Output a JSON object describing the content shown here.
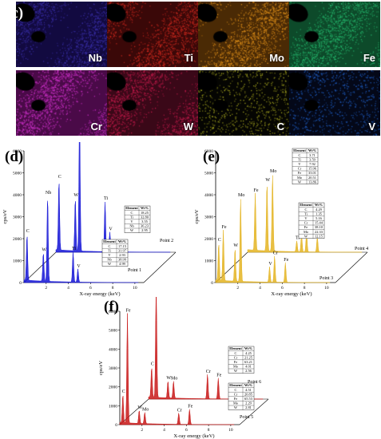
{
  "panel_c": {
    "label": "(c)",
    "maps": [
      {
        "element": "Nb",
        "color": "#3a2fa8",
        "bg": "#120a40"
      },
      {
        "element": "Ti",
        "color": "#c8281e",
        "bg": "#3a0808"
      },
      {
        "element": "Mo",
        "color": "#e0901a",
        "bg": "#4a2a05"
      },
      {
        "element": "Fe",
        "color": "#24b36a",
        "bg": "#0d4a2a"
      },
      {
        "element": "Cr",
        "color": "#cc30c8",
        "bg": "#4a0a48"
      },
      {
        "element": "W",
        "color": "#c01a4a",
        "bg": "#3a0818"
      },
      {
        "element": "C",
        "color": "#a8a820",
        "bg": "#050502"
      },
      {
        "element": "V",
        "color": "#2060c8",
        "bg": "#040818"
      }
    ]
  },
  "chart_data": [
    {
      "panel": "(d)",
      "type": "line",
      "color": "#1414d6",
      "xlabel": "X-ray energy (keV)",
      "ylabel": "cps/eV",
      "yticks": [
        "0",
        "1000",
        "2000",
        "3000",
        "4000",
        "5000",
        "6000"
      ],
      "xticks": [
        "2",
        "4",
        "6",
        "8",
        "10"
      ],
      "series": [
        {
          "name": "Point 1",
          "peaks": [
            {
              "label": "C",
              "x": 0.28,
              "y": 2100
            },
            {
              "label": "W",
              "x": 1.78,
              "y": 1300
            },
            {
              "label": "Nb",
              "x": 2.17,
              "y": 3900
            },
            {
              "label": "Ti",
              "x": 4.51,
              "y": 1400
            },
            {
              "label": "V",
              "x": 4.95,
              "y": 600
            }
          ],
          "table": [
            [
              "Element",
              "Wt%"
            ],
            [
              "C",
              "17.15"
            ],
            [
              "Ti",
              "31.97"
            ],
            [
              "V",
              "2.93"
            ],
            [
              "Nb",
              "38.99"
            ],
            [
              "W",
              "4.99"
            ]
          ]
        },
        {
          "name": "Point 2",
          "peaks": [
            {
              "label": "C",
              "x": 0.28,
              "y": 3200
            },
            {
              "label": "Nb",
              "x": 2.17,
              "y": 6300
            },
            {
              "label": "W",
              "x": 1.78,
              "y": 2400
            },
            {
              "label": "Ti",
              "x": 4.51,
              "y": 2300
            },
            {
              "label": "V",
              "x": 4.95,
              "y": 900
            }
          ],
          "table": [
            [
              "Element",
              "Wt%"
            ],
            [
              "C",
              "18.25"
            ],
            [
              "Ti",
              "32.80"
            ],
            [
              "V",
              "3.55"
            ],
            [
              "Nb",
              "36.23"
            ],
            [
              "W",
              "2.95"
            ]
          ]
        }
      ]
    },
    {
      "panel": "(e)",
      "type": "line",
      "color": "#e4b422",
      "xlabel": "X-ray energy (keV)",
      "ylabel": "cps/eV",
      "yticks": [
        "0",
        "1000",
        "2000",
        "3000",
        "4000",
        "5000",
        "6000"
      ],
      "xticks": [
        "2",
        "4",
        "6",
        "8",
        "10"
      ],
      "series": [
        {
          "name": "Point 3",
          "peaks": [
            {
              "label": "C",
              "x": 0.28,
              "y": 1700
            },
            {
              "label": "Fe",
              "x": 0.7,
              "y": 2300
            },
            {
              "label": "Mo",
              "x": 2.29,
              "y": 3800
            },
            {
              "label": "W",
              "x": 1.78,
              "y": 1500
            },
            {
              "label": "V",
              "x": 4.95,
              "y": 700
            },
            {
              "label": "Cr",
              "x": 5.41,
              "y": 1200
            },
            {
              "label": "Fe",
              "x": 6.4,
              "y": 900
            }
          ],
          "table": [
            [
              "Element",
              "Wt%"
            ],
            [
              "C",
              "4.29"
            ],
            [
              "Ti",
              "1.35"
            ],
            [
              "V",
              "5.16"
            ],
            [
              "Cr",
              "15.44"
            ],
            [
              "Fe",
              "38.10"
            ],
            [
              "Mo",
              "22.33"
            ],
            [
              "W",
              "12.15"
            ]
          ]
        },
        {
          "name": "Point 4",
          "peaks": [
            {
              "label": "Mo",
              "x": 2.29,
              "y": 3500
            },
            {
              "label": "Fe",
              "x": 0.7,
              "y": 2600
            },
            {
              "label": "W",
              "x": 1.78,
              "y": 3100
            },
            {
              "label": "Ti",
              "x": 4.51,
              "y": 500
            },
            {
              "label": "V",
              "x": 4.95,
              "y": 800
            },
            {
              "label": "Cr",
              "x": 5.41,
              "y": 900
            },
            {
              "label": "Fe",
              "x": 6.4,
              "y": 700
            }
          ],
          "table": [
            [
              "Element",
              "Wt%"
            ],
            [
              "C",
              "3.71"
            ],
            [
              "Ti",
              "3.59"
            ],
            [
              "V",
              "7.92"
            ],
            [
              "Cr",
              "15.96"
            ],
            [
              "Fe",
              "33.01"
            ],
            [
              "Mo",
              "20.51"
            ],
            [
              "W",
              "13.86"
            ]
          ]
        }
      ]
    },
    {
      "panel": "(f)",
      "type": "line",
      "color": "#c81818",
      "xlabel": "X-ray energy (keV)",
      "ylabel": "cps/eV",
      "yticks": [
        "0",
        "1000",
        "2000",
        "3000",
        "4000",
        "5000",
        "6000"
      ],
      "xticks": [
        "2",
        "4",
        "6",
        "8",
        "10"
      ],
      "series": [
        {
          "name": "Point 5",
          "peaks": [
            {
              "label": "C",
              "x": 0.28,
              "y": 1500
            },
            {
              "label": "Fe",
              "x": 0.7,
              "y": 5800
            },
            {
              "label": "W",
              "x": 1.78,
              "y": 700
            },
            {
              "label": "Mo",
              "x": 2.29,
              "y": 600
            },
            {
              "label": "Cr",
              "x": 5.41,
              "y": 600
            },
            {
              "label": "Fe",
              "x": 6.4,
              "y": 800
            }
          ],
          "table": [
            [
              "Element",
              "Wt%"
            ],
            [
              "C",
              "4.51"
            ],
            [
              "Cr",
              "20.85"
            ],
            [
              "Fe",
              "65.53"
            ],
            [
              "Mo",
              "2.29"
            ],
            [
              "W",
              "2.81"
            ]
          ]
        },
        {
          "name": "Point 6",
          "peaks": [
            {
              "label": "Fe",
              "x": 0.7,
              "y": 6000
            },
            {
              "label": "C",
              "x": 0.28,
              "y": 1600
            },
            {
              "label": "W",
              "x": 1.78,
              "y": 900
            },
            {
              "label": "Mo",
              "x": 2.29,
              "y": 900
            },
            {
              "label": "Cr",
              "x": 5.41,
              "y": 1300
            },
            {
              "label": "Fe",
              "x": 6.4,
              "y": 1100
            }
          ],
          "table": [
            [
              "Element",
              "Wt%"
            ],
            [
              "C",
              "4.25"
            ],
            [
              "Cr",
              "21.25"
            ],
            [
              "Fe",
              "63.21"
            ],
            [
              "Mo",
              "4.01"
            ],
            [
              "W",
              "2.56"
            ]
          ]
        }
      ]
    }
  ]
}
